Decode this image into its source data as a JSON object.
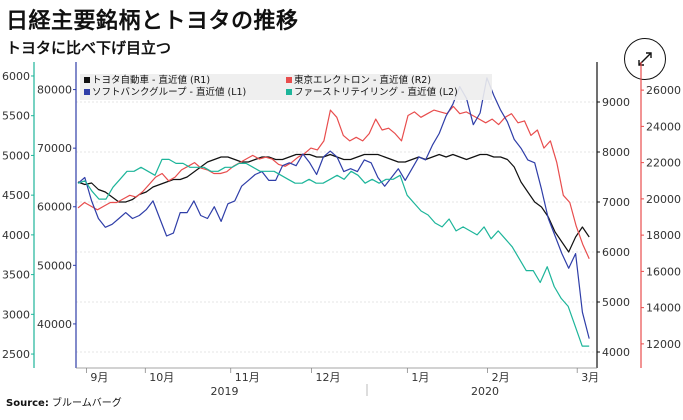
{
  "title": "日経主要銘柄とトヨタの推移",
  "subtitle": "トヨタに比べ下げ目立つ",
  "expand_icon": "expand-arrows-icon",
  "source": {
    "label": "Source:",
    "text": "ブルームバーグ"
  },
  "chart_data": {
    "type": "line",
    "x_ticks": [
      {
        "label": "9月",
        "t": 0.02
      },
      {
        "label": "10月",
        "t": 0.133
      },
      {
        "label": "11月",
        "t": 0.297
      },
      {
        "label": "12月",
        "t": 0.452
      },
      {
        "label": "1月",
        "t": 0.636
      },
      {
        "label": "2月",
        "t": 0.79
      },
      {
        "label": "3月",
        "t": 0.962
      }
    ],
    "year_labels": [
      {
        "label": "2019",
        "t": 0.285
      },
      {
        "label": "2020",
        "t": 0.785
      }
    ],
    "axes": {
      "L2": {
        "side": "left",
        "range": [
          2400,
          6050
        ],
        "ticks": [
          2500,
          3000,
          3500,
          4000,
          4500,
          5000,
          5500,
          6000
        ],
        "color": "#1db59a"
      },
      "L1": {
        "side": "left",
        "range": [
          33500,
          83000
        ],
        "ticks": [
          40000,
          50000,
          60000,
          70000,
          80000
        ],
        "color": "#2f3ea8"
      },
      "R1": {
        "side": "right",
        "range": [
          3800,
          9600
        ],
        "ticks": [
          4000,
          5000,
          6000,
          7000,
          8000,
          9000
        ],
        "color": "#111111"
      },
      "R2": {
        "side": "right",
        "range": [
          11000,
          27000
        ],
        "ticks": [
          12000,
          14000,
          16000,
          18000,
          20000,
          22000,
          24000,
          26000
        ],
        "color": "#e84d4d"
      }
    },
    "series": [
      {
        "name": "トヨタ自動車 - 直近値 (R1)",
        "axis": "R1",
        "color": "#111111",
        "values": [
          7400,
          7350,
          7380,
          7250,
          7200,
          7100,
          7000,
          7000,
          7050,
          7150,
          7200,
          7300,
          7350,
          7400,
          7450,
          7450,
          7500,
          7600,
          7700,
          7800,
          7850,
          7900,
          7900,
          7850,
          7800,
          7800,
          7850,
          7900,
          7900,
          7850,
          7850,
          7900,
          7950,
          7950,
          7950,
          7900,
          7900,
          7950,
          7900,
          7850,
          7850,
          7900,
          7950,
          7950,
          7950,
          7900,
          7850,
          7800,
          7800,
          7850,
          7900,
          7850,
          7900,
          7950,
          7900,
          7950,
          7900,
          7850,
          7900,
          7950,
          7950,
          7900,
          7900,
          7850,
          7700,
          7400,
          7200,
          7000,
          6900,
          6700,
          6400,
          6200,
          6000,
          6300,
          6500,
          6300
        ]
      },
      {
        "name": "東京エレクトロン - 直近値 (R2)",
        "axis": "R2",
        "color": "#e84d4d",
        "values": [
          19500,
          19800,
          19600,
          19400,
          19600,
          19800,
          19800,
          20000,
          20200,
          20100,
          20400,
          20800,
          21200,
          21400,
          21000,
          21200,
          21600,
          21800,
          22000,
          21700,
          21600,
          21400,
          21400,
          21500,
          21800,
          22000,
          22200,
          22400,
          22200,
          22300,
          22200,
          21900,
          21800,
          22000,
          22300,
          22500,
          22800,
          22700,
          23200,
          24900,
          24500,
          23500,
          23200,
          23400,
          23200,
          23600,
          24400,
          23800,
          23900,
          23600,
          23200,
          24600,
          24800,
          24500,
          24700,
          24900,
          24800,
          24700,
          25100,
          24700,
          24800,
          24600,
          24400,
          24200,
          24400,
          24100,
          24500,
          24700,
          24200,
          24300,
          23500,
          23800,
          22800,
          23200,
          22000,
          20200,
          19800,
          18500,
          17500,
          16700
        ]
      },
      {
        "name": "ソフトバンクグループ - 直近値 (L1)",
        "axis": "L1",
        "color": "#2f3ea8",
        "values": [
          64000,
          65000,
          61000,
          58000,
          56500,
          57000,
          58000,
          59000,
          58000,
          58500,
          59500,
          61000,
          58000,
          55000,
          55500,
          59000,
          59000,
          61000,
          58500,
          58000,
          60000,
          57500,
          60500,
          61000,
          63500,
          64500,
          65500,
          66000,
          64500,
          64500,
          67000,
          67500,
          67000,
          69000,
          67500,
          65500,
          68500,
          69500,
          68500,
          66000,
          66500,
          66000,
          68000,
          67500,
          65000,
          63500,
          65000,
          66500,
          64500,
          66500,
          68500,
          68000,
          70500,
          72500,
          75500,
          77500,
          80500,
          78500,
          74000,
          76000,
          82000,
          79000,
          76500,
          74500,
          71500,
          70000,
          68000,
          67500,
          63000,
          58000,
          55000,
          52000,
          49500,
          52000,
          42000,
          37500
        ]
      },
      {
        "name": "ファーストリテイリング - 直近値 (L2)",
        "axis": "L2",
        "color": "#1db59a",
        "values": [
          4650,
          4680,
          4550,
          4450,
          4450,
          4600,
          4700,
          4800,
          4800,
          4850,
          4800,
          4750,
          4950,
          4950,
          4900,
          4900,
          4850,
          4850,
          4850,
          4800,
          4800,
          4850,
          4850,
          4900,
          4900,
          4850,
          4800,
          4800,
          4800,
          4750,
          4700,
          4650,
          4650,
          4700,
          4650,
          4650,
          4700,
          4750,
          4700,
          4800,
          4750,
          4650,
          4700,
          4650,
          4700,
          4700,
          4750,
          4500,
          4400,
          4300,
          4250,
          4150,
          4100,
          4200,
          4050,
          4100,
          4050,
          4000,
          4100,
          3950,
          4050,
          3950,
          3850,
          3700,
          3550,
          3550,
          3400,
          3600,
          3350,
          3200,
          3100,
          2850,
          2600,
          2600
        ]
      }
    ],
    "legend": [
      "トヨタ自動車 - 直近値 (R1)",
      "東京エレクトロン - 直近値 (R2)",
      "ソフトバンクグループ - 直近値 (L1)",
      "ファーストリテイリング - 直近値 (L2)"
    ]
  }
}
